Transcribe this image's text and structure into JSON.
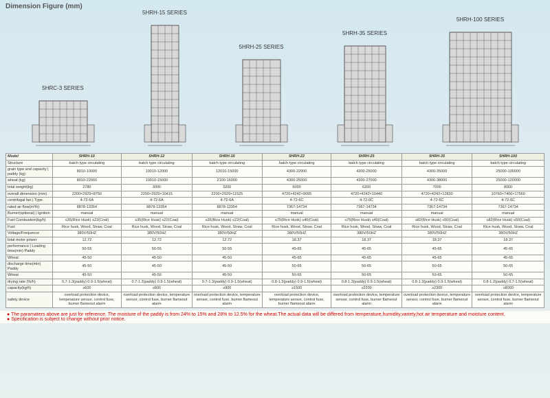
{
  "title": "Dimension Figure (mm)",
  "series": [
    "5HRC-3  SERIES",
    "5HRH-15  SERIES",
    "5HRH-25  SERIES",
    "5HRH-35  SERIES",
    "5HRH-100  SERIES"
  ],
  "heights": [
    60,
    170,
    120,
    140,
    160
  ],
  "widths": [
    70,
    40,
    55,
    60,
    90
  ],
  "colors": {
    "stroke": "#444",
    "fill": "#d8d8d8"
  },
  "models": [
    "5HRH-10",
    "5HRH-12",
    "5HRH-15",
    "5HRH-22",
    "5HRH-25",
    "5HRH-35",
    "5HRH-100"
  ],
  "rows": [
    {
      "label": "Structure",
      "vals": [
        "batch type circulating",
        "batch type circulating",
        "batch type circulating",
        "batch type circulating",
        "batch type circulating",
        "batch type circulating",
        "batch type circulating"
      ]
    },
    {
      "label": "grain type and capacity | paddy (kg)",
      "vals": [
        "8010-10000",
        "10010-12000",
        "12010-15000",
        "4300-22000",
        "4300-25000",
        "4300-35000",
        "25000-100000"
      ]
    },
    {
      "label": "wheat (kg)",
      "vals": [
        "8010-22000",
        "10010-15000",
        "2100-16000",
        "4300-25000",
        "4300-27000",
        "4300-38000",
        "25000-120000"
      ]
    },
    {
      "label": "total weight(kg)",
      "vals": [
        "2780",
        "3000",
        "3200",
        "6000",
        "6200",
        "7000",
        "8000"
      ]
    },
    {
      "label": "overall dimension (mm)",
      "vals": [
        "2200×2929×8750",
        "2200×2929×10415",
        "2200×2929×11525",
        "4720×4242×9095",
        "4720×4242×10440",
        "4720×4242×12830",
        "10760×7406×17560"
      ]
    },
    {
      "label": "centrifugal fan | Type",
      "vals": [
        "4-72-6A",
        "4-72-6A",
        "4-72-6A",
        "4-72-6C",
        "4-72-6C",
        "4-72-6C",
        "4-72-6C"
      ]
    },
    {
      "label": "rated air flow(m³/h)",
      "vals": [
        "8878-13354",
        "8878-13354",
        "8878-13354",
        "7367-14734",
        "7367-14734",
        "7367-14734",
        "7367-14734"
      ]
    },
    {
      "label": "Burner(optional) | Ignition",
      "vals": [
        "manual",
        "manual",
        "manual",
        "manual",
        "manual",
        "manual",
        "manual"
      ]
    },
    {
      "label": "Fuel Combustion(kg/h)",
      "vals": [
        "≤35(Rice Husk) ≤22(Coal)",
        "≤35(Rice Husk) ≤22(Coal)",
        "≤35(Rice Husk) ≤22(Coal)",
        "≤75(Rice Husk) ≤40(Coal)",
        "≤75(Rice Husk) ≤40(Coal)",
        "≤82(Rice Husk) ≤50(Coal)",
        "≤82(Rice Husk) ≤50(Coal)"
      ]
    },
    {
      "label": "Fuel",
      "vals": [
        "Rice husk, Wood, Straw, Coal",
        "Rice husk, Wood, Straw, Coal",
        "Rice husk, Wood, Straw, Coal",
        "Rice husk, Wood, Straw, Coal",
        "Rice husk, Wood, Straw, Coal",
        "Rice husk, Wood, Straw, Coal",
        "Rice husk, Wood, Straw, Coal"
      ]
    },
    {
      "label": "Voltage/Frequence",
      "vals": [
        "380V/50HZ",
        "380V/50HZ",
        "380V/50HZ",
        "380V/50HZ",
        "380V/50HZ",
        "380V/50HZ",
        "380V/50HZ"
      ]
    },
    {
      "label": "total motor power",
      "vals": [
        "12.72",
        "12.72",
        "12.72",
        "18.37",
        "18.37",
        "18.37",
        "18.37"
      ]
    },
    {
      "label": "performance | Loading time(min) Paddy",
      "vals": [
        "50-55",
        "50-55",
        "50-55",
        "45-65",
        "45-65",
        "45-65",
        "45-65"
      ]
    },
    {
      "label": "Wheat",
      "vals": [
        "45-50",
        "45-50",
        "45-50",
        "45-65",
        "45-65",
        "45-65",
        "45-65"
      ]
    },
    {
      "label": "discharge time(min) Paddy",
      "vals": [
        "45-50",
        "45-50",
        "45-50",
        "50-65",
        "50-65",
        "50-65",
        "50-65"
      ]
    },
    {
      "label": "Wheat",
      "vals": [
        "45-50",
        "45-50",
        "45-50",
        "50-65",
        "50-65",
        "50-65",
        "50-65"
      ]
    },
    {
      "label": "drying rate (%/h)",
      "vals": [
        "0.7-1.3(paddy) 0.9-1.5(wheat)",
        "0.7-1.3(paddy) 0.9-1.5(wheat)",
        "0.7-1.3(paddy) 0.9-1.5(wheat)",
        "0.8-1.3(paddy) 0.9-1.5(wheat)",
        "0.8-1.3(paddy) 0.9-1.5(wheat)",
        "0.8-1.3(paddy) 0.9-1.5(wheat)",
        "0.8-1.2(paddy) 0.7-1.5(wheat)"
      ]
    },
    {
      "label": "capacity(kg/h)",
      "vals": [
        "≥600",
        "≥800",
        "≥900",
        "≥1500",
        "≥2200",
        "≥2300",
        "≥8000"
      ]
    },
    {
      "label": "safety device",
      "vals": [
        "overload protection device, temperature sensor, control fuse, burner flameout alarm",
        "overload protection device, temperature sensor, control fuse, burner flameout alarm",
        "overload protection device, temperature sensor, control fuse, burner flameout alarm",
        "overload protection device, temperature sensor, control fuse, burner flameout alarm",
        "overload protection device, temperature sensor, control fuse, burner flameout alarm",
        "overload protection device, temperature sensor, control fuse, burner flameout alarm",
        "overload protection device, temperature sensor, control fuse, burner flameout alarm"
      ]
    }
  ],
  "notes": [
    "● The paramaters above are just for reference. The moisture of the paddy is from 24% to 15% and 28% to 12.5% for the wheat.The actual data will be differed from temperature,humidity,variety,hot air temperature and moisture content.",
    "● Specification is subject to change without prior notice."
  ]
}
